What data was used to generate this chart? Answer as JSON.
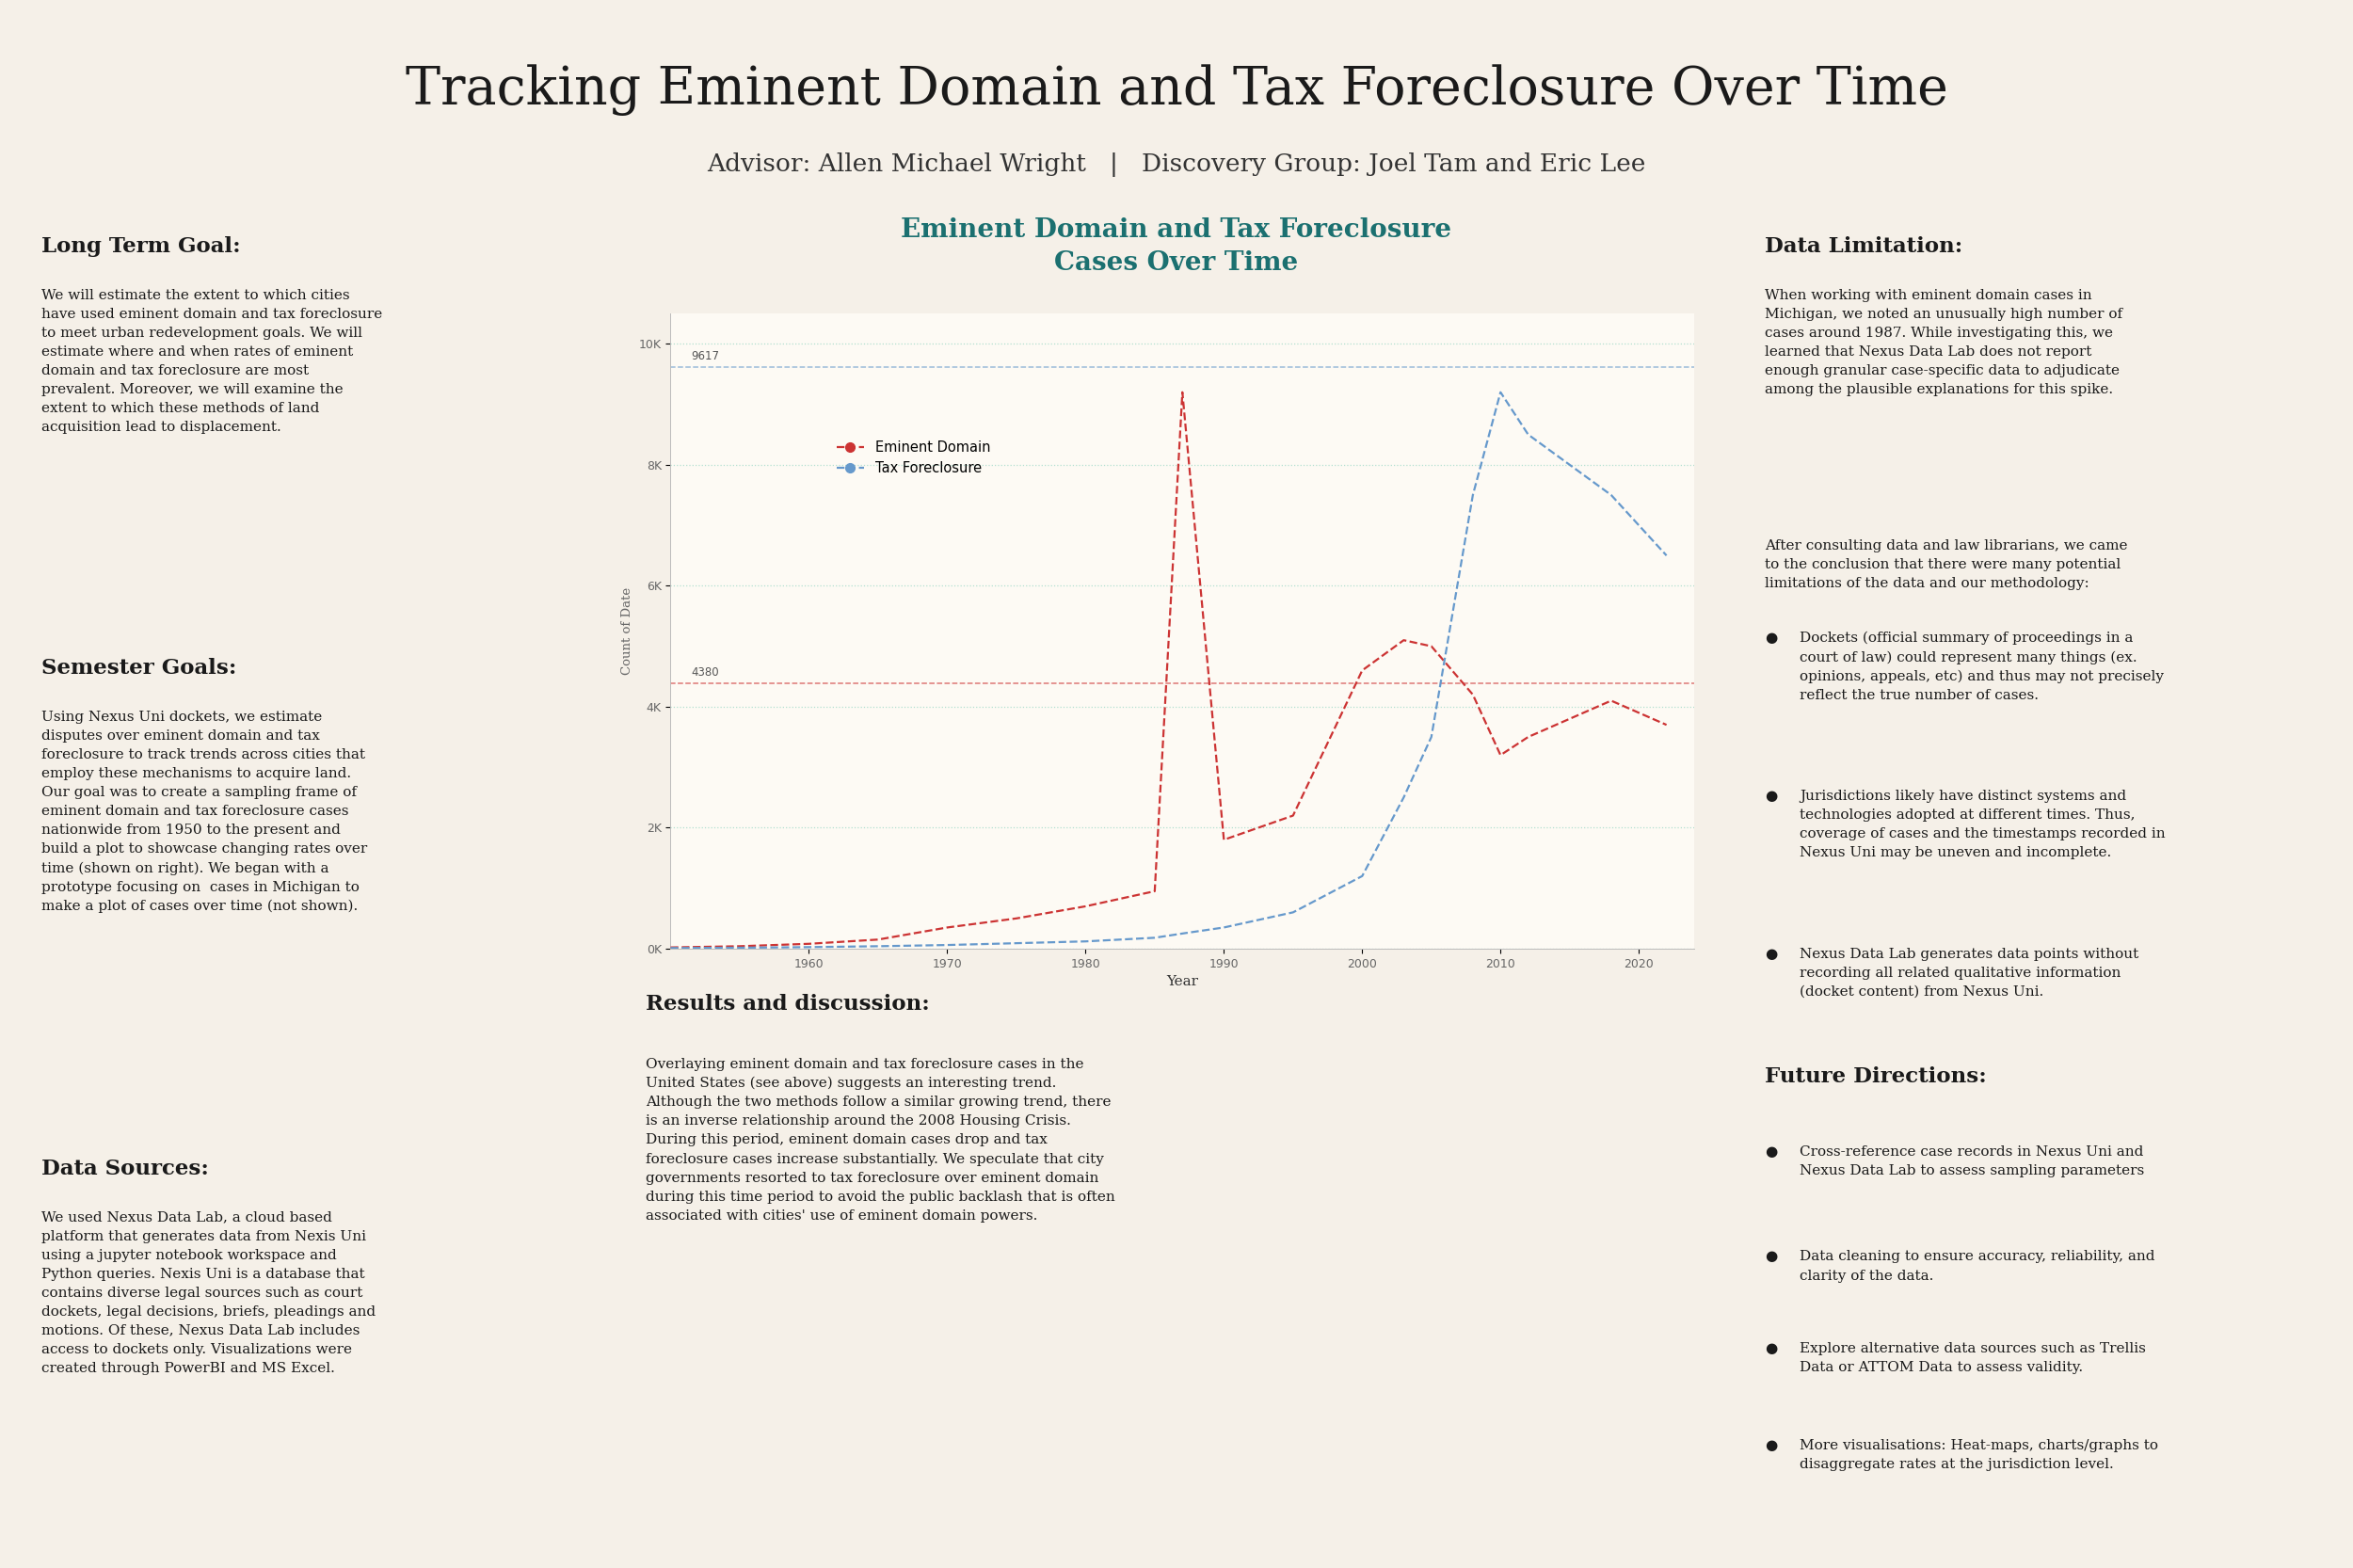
{
  "title": "Tracking Eminent Domain and Tax Foreclosure Over Time",
  "subtitle": "Advisor: Allen Michael Wright   |   Discovery Group: Joel Tam and Eric Lee",
  "bg_color": "#F5F0E8",
  "header_color": "#2E8B8B",
  "teal_color": "#1B7070",
  "chart_title": "Eminent Domain and Tax Foreclosure\nCases Over Time",
  "chart_title_color": "#1B7070",
  "xlabel": "Year",
  "ylabel": "Count of Date",
  "ed_color": "#CC3333",
  "tf_color": "#6699CC",
  "ed_ref_value": 4380,
  "tf_ref_value": 9617,
  "years": [
    1950,
    1955,
    1960,
    1965,
    1970,
    1975,
    1980,
    1985,
    1987,
    1990,
    1995,
    2000,
    2003,
    2005,
    2008,
    2010,
    2012,
    2015,
    2018,
    2020,
    2022
  ],
  "ed_values": [
    20,
    40,
    80,
    150,
    350,
    500,
    700,
    950,
    9200,
    1800,
    2200,
    4600,
    5100,
    5000,
    4200,
    3200,
    3500,
    3800,
    4100,
    3900,
    3700
  ],
  "tf_values": [
    10,
    15,
    25,
    40,
    60,
    90,
    120,
    180,
    250,
    350,
    600,
    1200,
    2500,
    3500,
    7500,
    9200,
    8500,
    8000,
    7500,
    7000,
    6500
  ],
  "ylim": [
    0,
    10500
  ],
  "yticks": [
    0,
    2000,
    4000,
    6000,
    8000,
    10000
  ],
  "ytick_labels": [
    "0K",
    "2K",
    "4K",
    "6K",
    "8K",
    "10K"
  ],
  "xticks": [
    1960,
    1970,
    1980,
    1990,
    2000,
    2010,
    2020
  ],
  "sections": {
    "long_term_goal_title": "Long Term Goal:",
    "long_term_goal_body": "We will estimate the extent to which cities\nhave used eminent domain and tax foreclosure\nto meet urban redevelopment goals. We will\nestimate where and when rates of eminent\ndomain and tax foreclosure are most\nprevalent. Moreover, we will examine the\nextent to which these methods of land\nacquisition lead to displacement.",
    "semester_goals_title": "Semester Goals:",
    "semester_goals_body": "Using Nexus Uni dockets, we estimate\ndisputes over eminent domain and tax\nforeclosure to track trends across cities that\nemploy these mechanisms to acquire land.\nOur goal was to create a sampling frame of\neminent domain and tax foreclosure cases\nnationwide from 1950 to the present and\nbuild a plot to showcase changing rates over\ntime (shown on right). We began with a\nprototype focusing on  cases in Michigan to\nmake a plot of cases over time (not shown).",
    "data_sources_title": "Data Sources:",
    "data_sources_body": "We used Nexus Data Lab, a cloud based\nplatform that generates data from Nexis Uni\nusing a jupyter notebook workspace and\nPython queries. Nexis Uni is a database that\ncontains diverse legal sources such as court\ndockets, legal decisions, briefs, pleadings and\nmotions. Of these, Nexus Data Lab includes\naccess to dockets only. Visualizations were\ncreated through PowerBI and MS Excel.",
    "results_title": "Results and discussion:",
    "results_body": "Overlaying eminent domain and tax foreclosure cases in the\nUnited States (see above) suggests an interesting trend.\nAlthough the two methods follow a similar growing trend, there\nis an inverse relationship around the 2008 Housing Crisis.\nDuring this period, eminent domain cases drop and tax\nforeclosure cases increase substantially. We speculate that city\ngovernments resorted to tax foreclosure over eminent domain\nduring this time period to avoid the public backlash that is often\nassociated with cities' use of eminent domain powers.",
    "data_limitation_title": "Data Limitation:",
    "data_limitation_body1": "When working with eminent domain cases in\nMichigan, we noted an unusually high number of\ncases around 1987. While investigating this, we\nlearned that Nexus Data Lab does not report\nenough granular case-specific data to adjudicate\namong the plausible explanations for this spike.",
    "data_limitation_body2": "After consulting data and law librarians, we came\nto the conclusion that there were many potential\nlimitations of the data and our methodology:",
    "data_limitation_bullets": [
      "Dockets (official summary of proceedings in a\ncourt of law) could represent many things (ex.\nopinions, appeals, etc) and thus may not precisely\nreflect the true number of cases.",
      "Jurisdictions likely have distinct systems and\ntechnologies adopted at different times. Thus,\ncoverage of cases and the timestamps recorded in\nNexus Uni may be uneven and incomplete.",
      "Nexus Data Lab generates data points without\nrecording all related qualitative information\n(docket content) from Nexus Uni."
    ],
    "future_directions_title": "Future Directions:",
    "future_directions_bullets": [
      "Cross-reference case records in Nexus Uni and\nNexus Data Lab to assess sampling parameters",
      "Data cleaning to ensure accuracy, reliability, and\nclarity of the data.",
      "Explore alternative data sources such as Trellis\nData or ATTOM Data to assess validity.",
      "More visualisations: Heat-maps, charts/graphs to\ndisaggregate rates at the jurisdiction level."
    ]
  }
}
